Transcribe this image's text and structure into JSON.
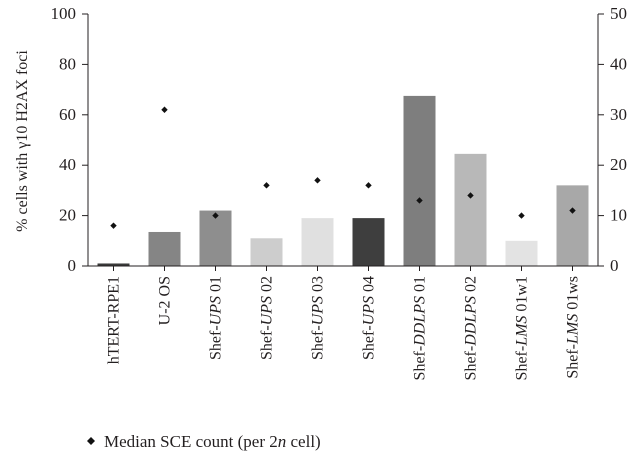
{
  "chart_data": {
    "type": "bar",
    "ylabel": "% cells with γ10 H2AX foci",
    "ylim": [
      0,
      100
    ],
    "y_ticks": [
      "0",
      "20",
      "40",
      "60",
      "80",
      "100"
    ],
    "y2lim": [
      0,
      50
    ],
    "y2_ticks": [
      "0",
      "10",
      "20",
      "30",
      "40",
      "50"
    ],
    "categories": [
      {
        "parts": [
          {
            "t": "hTERT-RPE1",
            "i": false
          }
        ]
      },
      {
        "parts": [
          {
            "t": "U-2 OS",
            "i": false
          }
        ]
      },
      {
        "parts": [
          {
            "t": "Shef-",
            "i": false
          },
          {
            "t": "UPS",
            "i": true
          },
          {
            "t": " 01",
            "i": false
          }
        ]
      },
      {
        "parts": [
          {
            "t": "Shef-",
            "i": false
          },
          {
            "t": "UPS",
            "i": true
          },
          {
            "t": " 02",
            "i": false
          }
        ]
      },
      {
        "parts": [
          {
            "t": "Shef-",
            "i": false
          },
          {
            "t": "UPS",
            "i": true
          },
          {
            "t": " 03",
            "i": false
          }
        ]
      },
      {
        "parts": [
          {
            "t": "Shef-",
            "i": false
          },
          {
            "t": "UPS",
            "i": true
          },
          {
            "t": " 04",
            "i": false
          }
        ]
      },
      {
        "parts": [
          {
            "t": "Shef-",
            "i": false
          },
          {
            "t": "DDLPS",
            "i": true
          },
          {
            "t": " 01",
            "i": false
          }
        ]
      },
      {
        "parts": [
          {
            "t": "Shef-",
            "i": false
          },
          {
            "t": "DDLPS",
            "i": true
          },
          {
            "t": " 02",
            "i": false
          }
        ]
      },
      {
        "parts": [
          {
            "t": "Shef-",
            "i": false
          },
          {
            "t": "LMS",
            "i": true
          },
          {
            "t": " 01w1",
            "i": false
          }
        ]
      },
      {
        "parts": [
          {
            "t": "Shef-",
            "i": false
          },
          {
            "t": "LMS",
            "i": true
          },
          {
            "t": " 01ws",
            "i": false
          }
        ]
      }
    ],
    "bar_values": [
      1,
      13.5,
      22,
      11,
      19,
      19,
      67.5,
      44.5,
      10,
      32
    ],
    "bar_colors": [
      "#3a3a3a",
      "#858585",
      "#8e8e8e",
      "#cdcdcd",
      "#e0e0e0",
      "#3e3e3e",
      "#7e7e7e",
      "#b8b8b8",
      "#e3e3e3",
      "#a8a8a8"
    ],
    "series": [
      {
        "name": "Median SCE count (per 2n cell)",
        "axis": "right",
        "marker": "diamond",
        "values": [
          8,
          31,
          10,
          16,
          17,
          16,
          13,
          14,
          10,
          11
        ]
      }
    ],
    "legend": {
      "position": "bottom",
      "parts": [
        {
          "t": "Median SCE count (per 2",
          "i": false
        },
        {
          "t": "n",
          "i": true
        },
        {
          "t": " cell)",
          "i": false
        }
      ]
    },
    "grid": false
  }
}
